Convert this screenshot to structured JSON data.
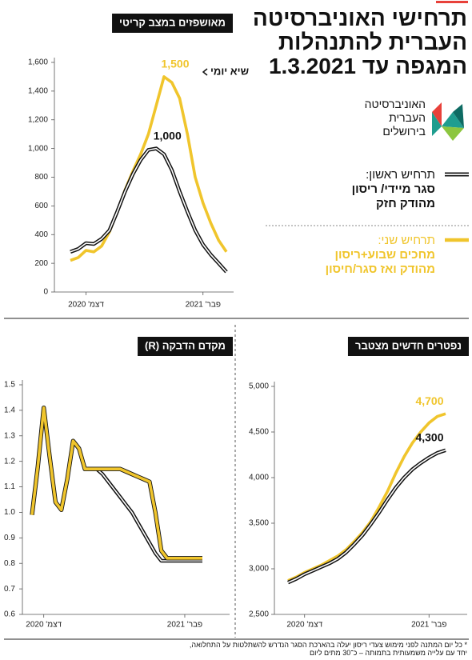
{
  "header": {
    "title": [
      "תרחישי האוניברסיטה",
      "העברית להתנהלות",
      "המגפה עד 1.3.2021"
    ],
    "logo": [
      "האוניברסיטה",
      "העברית",
      "בירושלים"
    ]
  },
  "legend": [
    {
      "label": "תרחיש ראשון:",
      "lines": [
        "סגר מיידי/ ריסון",
        "מהודק חזק"
      ],
      "color": "#111111"
    },
    {
      "label": "תרחיש שני:",
      "lines": [
        "מחכים שבוע+ריסון",
        "מהודק ואז סגר/חיסון"
      ],
      "color": "#f0c52c"
    }
  ],
  "footnote": [
    "* כל יום המתנה לפני מימוש צעדי ריסון יעלה בהארכת הסגר הנדרש להשתלטות על התחלואה,",
    "יחד עם עלייה משמעותית בתמותה – כ־30 מתים ליום"
  ],
  "chart_data": [
    {
      "type": "line",
      "title": "מאושפזים במצב קריטי",
      "annotation": "שיא יומי",
      "categories": [
        null,
        null,
        "דצמ' 2020",
        null,
        null,
        null,
        null,
        null,
        null,
        null,
        null,
        null,
        null,
        null,
        null,
        null,
        null,
        "פבר' 2021",
        null,
        null,
        null
      ],
      "series": [
        {
          "color": "#111111",
          "values": [
            280,
            300,
            340,
            335,
            370,
            430,
            560,
            700,
            820,
            920,
            990,
            1000,
            960,
            850,
            700,
            560,
            430,
            330,
            260,
            200,
            140
          ],
          "value_labels": [
            null,
            null,
            null,
            null,
            null,
            null,
            null,
            null,
            null,
            null,
            null,
            "1,000",
            null,
            null,
            null,
            null,
            null,
            null,
            null,
            null,
            null
          ]
        },
        {
          "color": "#f0c52c",
          "values": [
            220,
            240,
            290,
            280,
            320,
            420,
            560,
            710,
            840,
            960,
            1100,
            1300,
            1500,
            1460,
            1350,
            1100,
            800,
            620,
            480,
            360,
            280
          ],
          "value_labels": [
            null,
            null,
            null,
            null,
            null,
            null,
            null,
            null,
            null,
            null,
            null,
            null,
            "1,500",
            null,
            null,
            null,
            null,
            null,
            null,
            null,
            null
          ]
        }
      ],
      "ylim": [
        0,
        1600
      ],
      "yticks": [
        0,
        200,
        400,
        600,
        800,
        {
          "value": 1000,
          "label": "1,000"
        },
        {
          "value": 1200,
          "label": "1,200"
        },
        {
          "value": 1400,
          "label": "1,400"
        },
        {
          "value": 1600,
          "label": "1,600"
        }
      ]
    },
    {
      "type": "line",
      "title": "מקדם הדבקה (R)",
      "categories": [
        null,
        null,
        "דצמ' 2020",
        null,
        null,
        null,
        null,
        null,
        null,
        null,
        null,
        null,
        null,
        null,
        null,
        null,
        null,
        null,
        null,
        null,
        null,
        null,
        null,
        null,
        null,
        null,
        "פבר' 2021",
        null,
        null,
        null
      ],
      "series": [
        {
          "color": "#111111",
          "values": [
            0.99,
            1.18,
            1.41,
            1.22,
            1.04,
            1.01,
            1.13,
            1.28,
            1.25,
            1.17,
            1.17,
            1.17,
            1.15,
            1.12,
            1.09,
            1.06,
            1.03,
            1.0,
            0.96,
            0.92,
            0.88,
            0.84,
            0.81,
            0.81,
            0.81,
            0.81,
            0.81,
            0.81,
            0.81,
            0.81
          ]
        },
        {
          "color": "#f0c52c",
          "values": [
            0.99,
            1.18,
            1.41,
            1.22,
            1.04,
            1.01,
            1.13,
            1.28,
            1.25,
            1.17,
            1.17,
            1.17,
            1.17,
            1.17,
            1.17,
            1.17,
            1.16,
            1.15,
            1.14,
            1.13,
            1.12,
            1.0,
            0.85,
            0.82,
            0.82,
            0.82,
            0.82,
            0.82,
            0.82,
            0.82
          ]
        }
      ],
      "ylim": [
        0.6,
        1.5
      ],
      "yticks": [
        0.6,
        0.7,
        0.8,
        0.9,
        {
          "value": 1,
          "label": "1.0"
        },
        1.1,
        1.2,
        1.3,
        1.4,
        1.5
      ]
    },
    {
      "type": "line",
      "title": "נפטרים חדשים מצטבר",
      "categories": [
        null,
        null,
        "דצמ' 2020",
        null,
        null,
        null,
        null,
        null,
        null,
        null,
        null,
        null,
        null,
        null,
        null,
        null,
        null,
        "פבר' 2021",
        null,
        null
      ],
      "series": [
        {
          "color": "#111111",
          "values": [
            2850,
            2890,
            2940,
            2980,
            3020,
            3060,
            3110,
            3180,
            3270,
            3370,
            3490,
            3620,
            3760,
            3890,
            4000,
            4090,
            4160,
            4220,
            4270,
            4300
          ],
          "value_labels": [
            null,
            null,
            null,
            null,
            null,
            null,
            null,
            null,
            null,
            null,
            null,
            null,
            null,
            null,
            null,
            null,
            null,
            null,
            null,
            "4,300"
          ]
        },
        {
          "color": "#f0c52c",
          "values": [
            2870,
            2910,
            2960,
            3000,
            3040,
            3090,
            3140,
            3210,
            3300,
            3400,
            3520,
            3680,
            3850,
            4050,
            4230,
            4380,
            4500,
            4600,
            4670,
            4700
          ],
          "value_labels": [
            null,
            null,
            null,
            null,
            null,
            null,
            null,
            null,
            null,
            null,
            null,
            null,
            null,
            null,
            null,
            null,
            null,
            null,
            null,
            "4,700"
          ]
        }
      ],
      "ylim": [
        2500,
        5000
      ],
      "yticks": [
        {
          "value": 2500,
          "label": "2,500"
        },
        {
          "value": 3000,
          "label": "3,000"
        },
        {
          "value": 3500,
          "label": "3,500"
        },
        {
          "value": 4000,
          "label": "4,000"
        },
        {
          "value": 4500,
          "label": "4,500"
        },
        {
          "value": 5000,
          "label": "5,000"
        }
      ]
    }
  ]
}
